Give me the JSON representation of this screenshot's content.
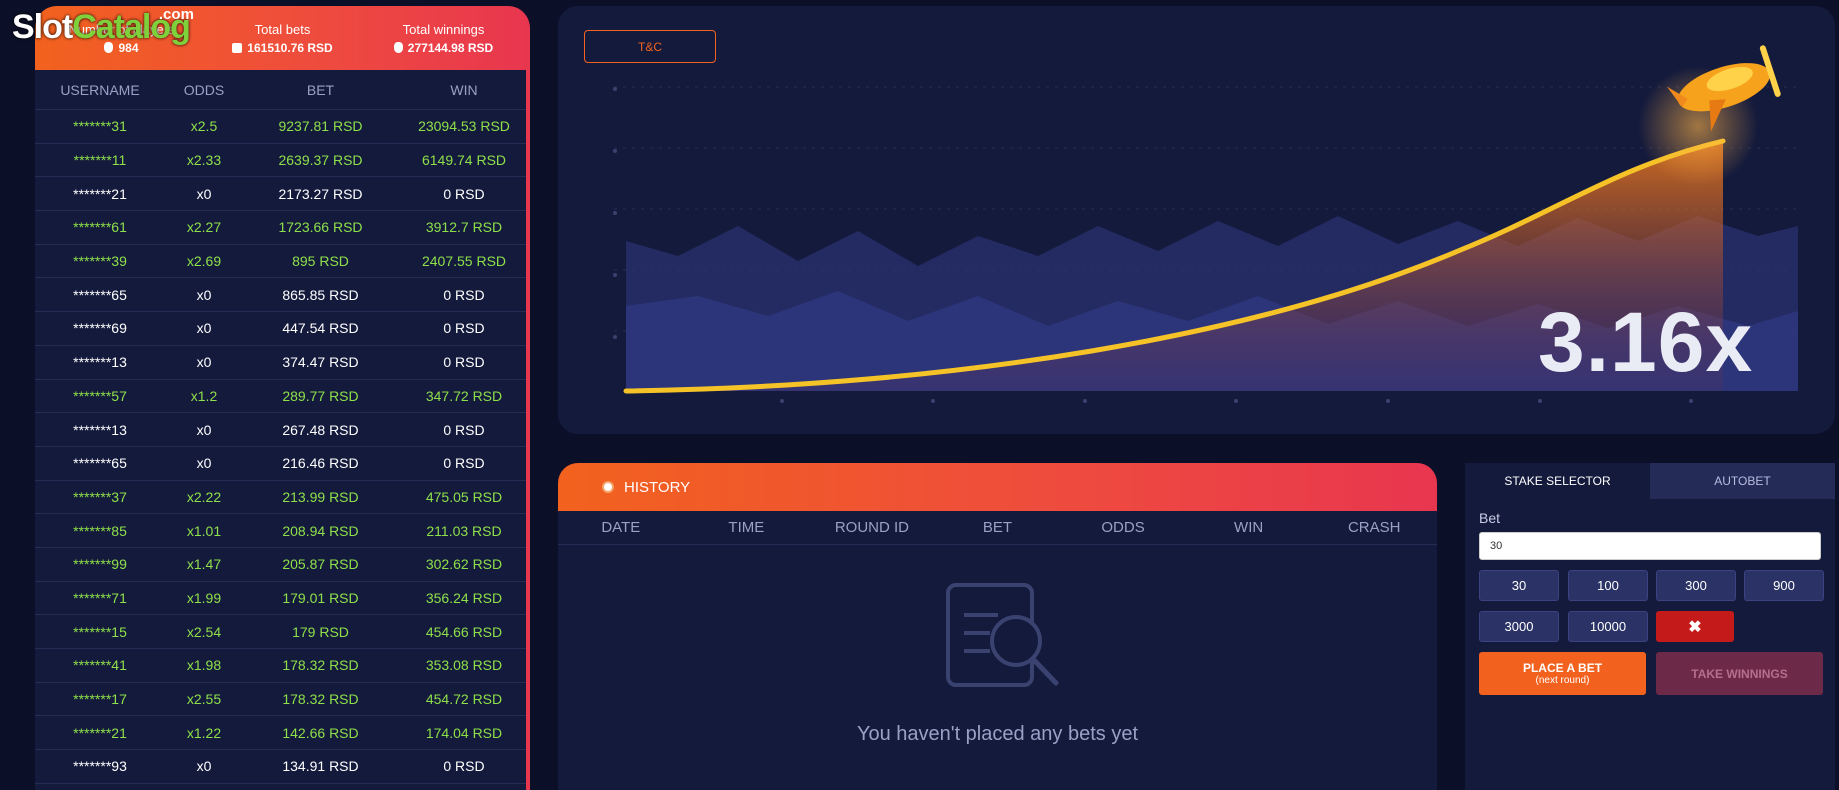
{
  "watermark": {
    "slot": "Slot",
    "catalog": "Catalog",
    "com": ".com"
  },
  "stats": {
    "players_label": "Number of players",
    "players_value": "984",
    "bets_label": "Total bets",
    "bets_value": "161510.76 RSD",
    "winnings_label": "Total winnings",
    "winnings_value": "277144.98 RSD"
  },
  "table": {
    "headers": [
      "USERNAME",
      "ODDS",
      "BET",
      "WIN"
    ],
    "rows": [
      {
        "user": "*******31",
        "odds": "x2.5",
        "bet": "9237.81 RSD",
        "win": "23094.53 RSD",
        "status": "win"
      },
      {
        "user": "*******11",
        "odds": "x2.33",
        "bet": "2639.37 RSD",
        "win": "6149.74 RSD",
        "status": "win"
      },
      {
        "user": "*******21",
        "odds": "x0",
        "bet": "2173.27 RSD",
        "win": "0 RSD",
        "status": "lose"
      },
      {
        "user": "*******61",
        "odds": "x2.27",
        "bet": "1723.66 RSD",
        "win": "3912.7 RSD",
        "status": "win"
      },
      {
        "user": "*******39",
        "odds": "x2.69",
        "bet": "895 RSD",
        "win": "2407.55 RSD",
        "status": "win"
      },
      {
        "user": "*******65",
        "odds": "x0",
        "bet": "865.85 RSD",
        "win": "0 RSD",
        "status": "lose"
      },
      {
        "user": "*******69",
        "odds": "x0",
        "bet": "447.54 RSD",
        "win": "0 RSD",
        "status": "lose"
      },
      {
        "user": "*******13",
        "odds": "x0",
        "bet": "374.47 RSD",
        "win": "0 RSD",
        "status": "lose"
      },
      {
        "user": "*******57",
        "odds": "x1.2",
        "bet": "289.77 RSD",
        "win": "347.72 RSD",
        "status": "win"
      },
      {
        "user": "*******13",
        "odds": "x0",
        "bet": "267.48 RSD",
        "win": "0 RSD",
        "status": "lose"
      },
      {
        "user": "*******65",
        "odds": "x0",
        "bet": "216.46 RSD",
        "win": "0 RSD",
        "status": "lose"
      },
      {
        "user": "*******37",
        "odds": "x2.22",
        "bet": "213.99 RSD",
        "win": "475.05 RSD",
        "status": "win"
      },
      {
        "user": "*******85",
        "odds": "x1.01",
        "bet": "208.94 RSD",
        "win": "211.03 RSD",
        "status": "win"
      },
      {
        "user": "*******99",
        "odds": "x1.47",
        "bet": "205.87 RSD",
        "win": "302.62 RSD",
        "status": "win"
      },
      {
        "user": "*******71",
        "odds": "x1.99",
        "bet": "179.01 RSD",
        "win": "356.24 RSD",
        "status": "win"
      },
      {
        "user": "*******15",
        "odds": "x2.54",
        "bet": "179 RSD",
        "win": "454.66 RSD",
        "status": "win"
      },
      {
        "user": "*******41",
        "odds": "x1.98",
        "bet": "178.32 RSD",
        "win": "353.08 RSD",
        "status": "win"
      },
      {
        "user": "*******17",
        "odds": "x2.55",
        "bet": "178.32 RSD",
        "win": "454.72 RSD",
        "status": "win"
      },
      {
        "user": "*******21",
        "odds": "x1.22",
        "bet": "142.66 RSD",
        "win": "174.04 RSD",
        "status": "win"
      },
      {
        "user": "*******93",
        "odds": "x0",
        "bet": "134.91 RSD",
        "win": "0 RSD",
        "status": "lose"
      }
    ]
  },
  "game": {
    "tc_label": "T&C",
    "multiplier": "3.16x"
  },
  "history": {
    "title": "HISTORY",
    "columns": [
      "DATE",
      "TIME",
      "ROUND ID",
      "BET",
      "ODDS",
      "WIN",
      "CRASH"
    ],
    "empty_text": "You haven't placed any bets yet"
  },
  "bet_panel": {
    "tab_stake": "STAKE SELECTOR",
    "tab_autobet": "AUTOBET",
    "bet_label": "Bet",
    "bet_value": "30",
    "quick_amounts": [
      "30",
      "100",
      "300",
      "900",
      "3000",
      "10000"
    ],
    "clear_symbol": "✖",
    "place_bet": "PLACE A BET",
    "place_bet_sub": "(next round)",
    "take_winnings": "TAKE WINNINGS"
  },
  "colors": {
    "accent": "#f2621e",
    "win_text": "#8ee04a",
    "panel": "#141a3c",
    "background": "#0b1028"
  }
}
